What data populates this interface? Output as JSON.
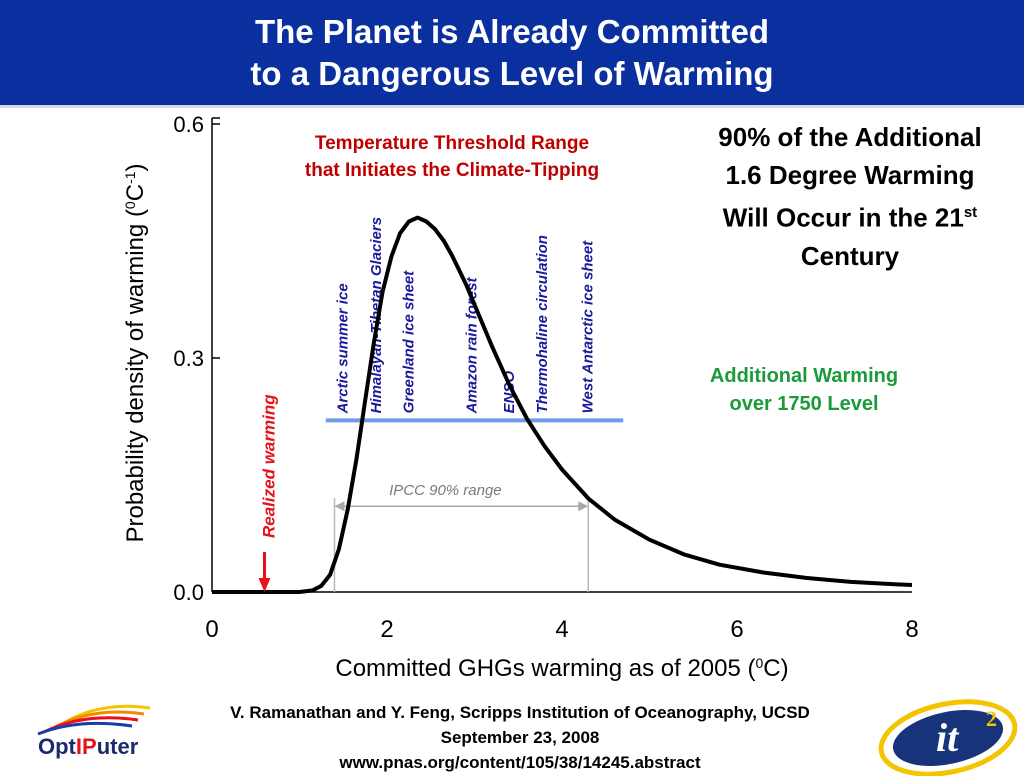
{
  "slide": {
    "title_line_1": "The Planet is Already Committed",
    "title_line_2": "to a Dangerous Level of Warming",
    "colors": {
      "title_bar": "#0a2f9e",
      "curve": "#000000",
      "threshold_line": "#6f9be8",
      "tipping_labels": "#1a1a9c",
      "realized": "#e8101a",
      "green_note": "#1a9a3a",
      "red_note": "#c00000"
    }
  },
  "notes": {
    "right_line_1": "90% of the Additional",
    "right_line_2": "1.6 Degree Warming",
    "right_line_3": "Will Occur in the 21",
    "right_line_3_sup": "st",
    "right_line_4": "Century",
    "green_line_1": "Additional Warming",
    "green_line_2": "over 1750 Level",
    "red_line_1": "Temperature Threshold Range",
    "red_line_2": "that Initiates the Climate-Tipping"
  },
  "chart_data": {
    "type": "line",
    "ylabel": "Probability density of warming (0C-1)",
    "ylabel_parts": {
      "main": "Probability density of warming (",
      "sup_1": "0",
      "mid": "C",
      "sup_2": "-1",
      "end": ")"
    },
    "xlabel": "Committed GHGs warming as of 2005 (0C)",
    "xlabel_parts": {
      "main": "Committed GHGs warming as of 2005 (",
      "sup": "0",
      "end": "C)"
    },
    "xlim": [
      0,
      8
    ],
    "ylim": [
      0,
      0.6
    ],
    "x_ticks": [
      "0",
      "2",
      "4",
      "6",
      "8"
    ],
    "y_ticks": [
      "0.0",
      "0.3",
      "0.6"
    ],
    "series": [
      {
        "x": [
          0.0,
          0.5,
          1.0,
          1.15,
          1.25,
          1.35,
          1.45,
          1.55,
          1.65,
          1.75,
          1.85,
          1.95,
          2.05,
          2.15,
          2.25,
          2.35,
          2.45,
          2.55,
          2.65,
          2.75,
          2.9,
          3.05,
          3.2,
          3.4,
          3.6,
          3.8,
          4.0,
          4.3,
          4.6,
          5.0,
          5.4,
          5.8,
          6.3,
          6.8,
          7.3,
          7.8,
          8.0
        ],
        "y": [
          0.0,
          0.0,
          0.0,
          0.002,
          0.008,
          0.022,
          0.055,
          0.105,
          0.17,
          0.245,
          0.32,
          0.385,
          0.43,
          0.46,
          0.475,
          0.48,
          0.475,
          0.465,
          0.45,
          0.43,
          0.395,
          0.355,
          0.315,
          0.265,
          0.222,
          0.187,
          0.157,
          0.12,
          0.093,
          0.067,
          0.048,
          0.035,
          0.025,
          0.018,
          0.013,
          0.01,
          0.009
        ]
      }
    ],
    "threshold_line": {
      "x_start": 1.3,
      "x_end": 4.7,
      "y": 0.22
    },
    "ipcc_range": {
      "label": "IPCC 90% range",
      "x_start": 1.4,
      "x_end": 4.3,
      "y": 0.11
    },
    "realized_warming": {
      "label": "Realized warming",
      "x": 0.6
    },
    "tipping_elements": [
      {
        "label": "Arctic summer ice",
        "x": 1.55
      },
      {
        "label": "Himalayan-Tibetan Glaciers",
        "x": 1.93
      },
      {
        "label": "Greenland ice sheet",
        "x": 2.3
      },
      {
        "label": "Amazon rain forest",
        "x": 3.02
      },
      {
        "label": "ENSO",
        "x": 3.45
      },
      {
        "label": "Thermohaline circulation",
        "x": 3.83
      },
      {
        "label": "West Antarctic ice sheet",
        "x": 4.35
      }
    ]
  },
  "footer": {
    "line_1": "V. Ramanathan and Y. Feng, Scripps Institution of Oceanography, UCSD",
    "line_2": "September 23, 2008",
    "line_3": "www.pnas.org/content/105/38/14245.abstract"
  },
  "logos": {
    "left_part_1": "Opt",
    "left_part_2": "IP",
    "left_part_3": "uter",
    "right_main": "it",
    "right_sup": "2"
  }
}
